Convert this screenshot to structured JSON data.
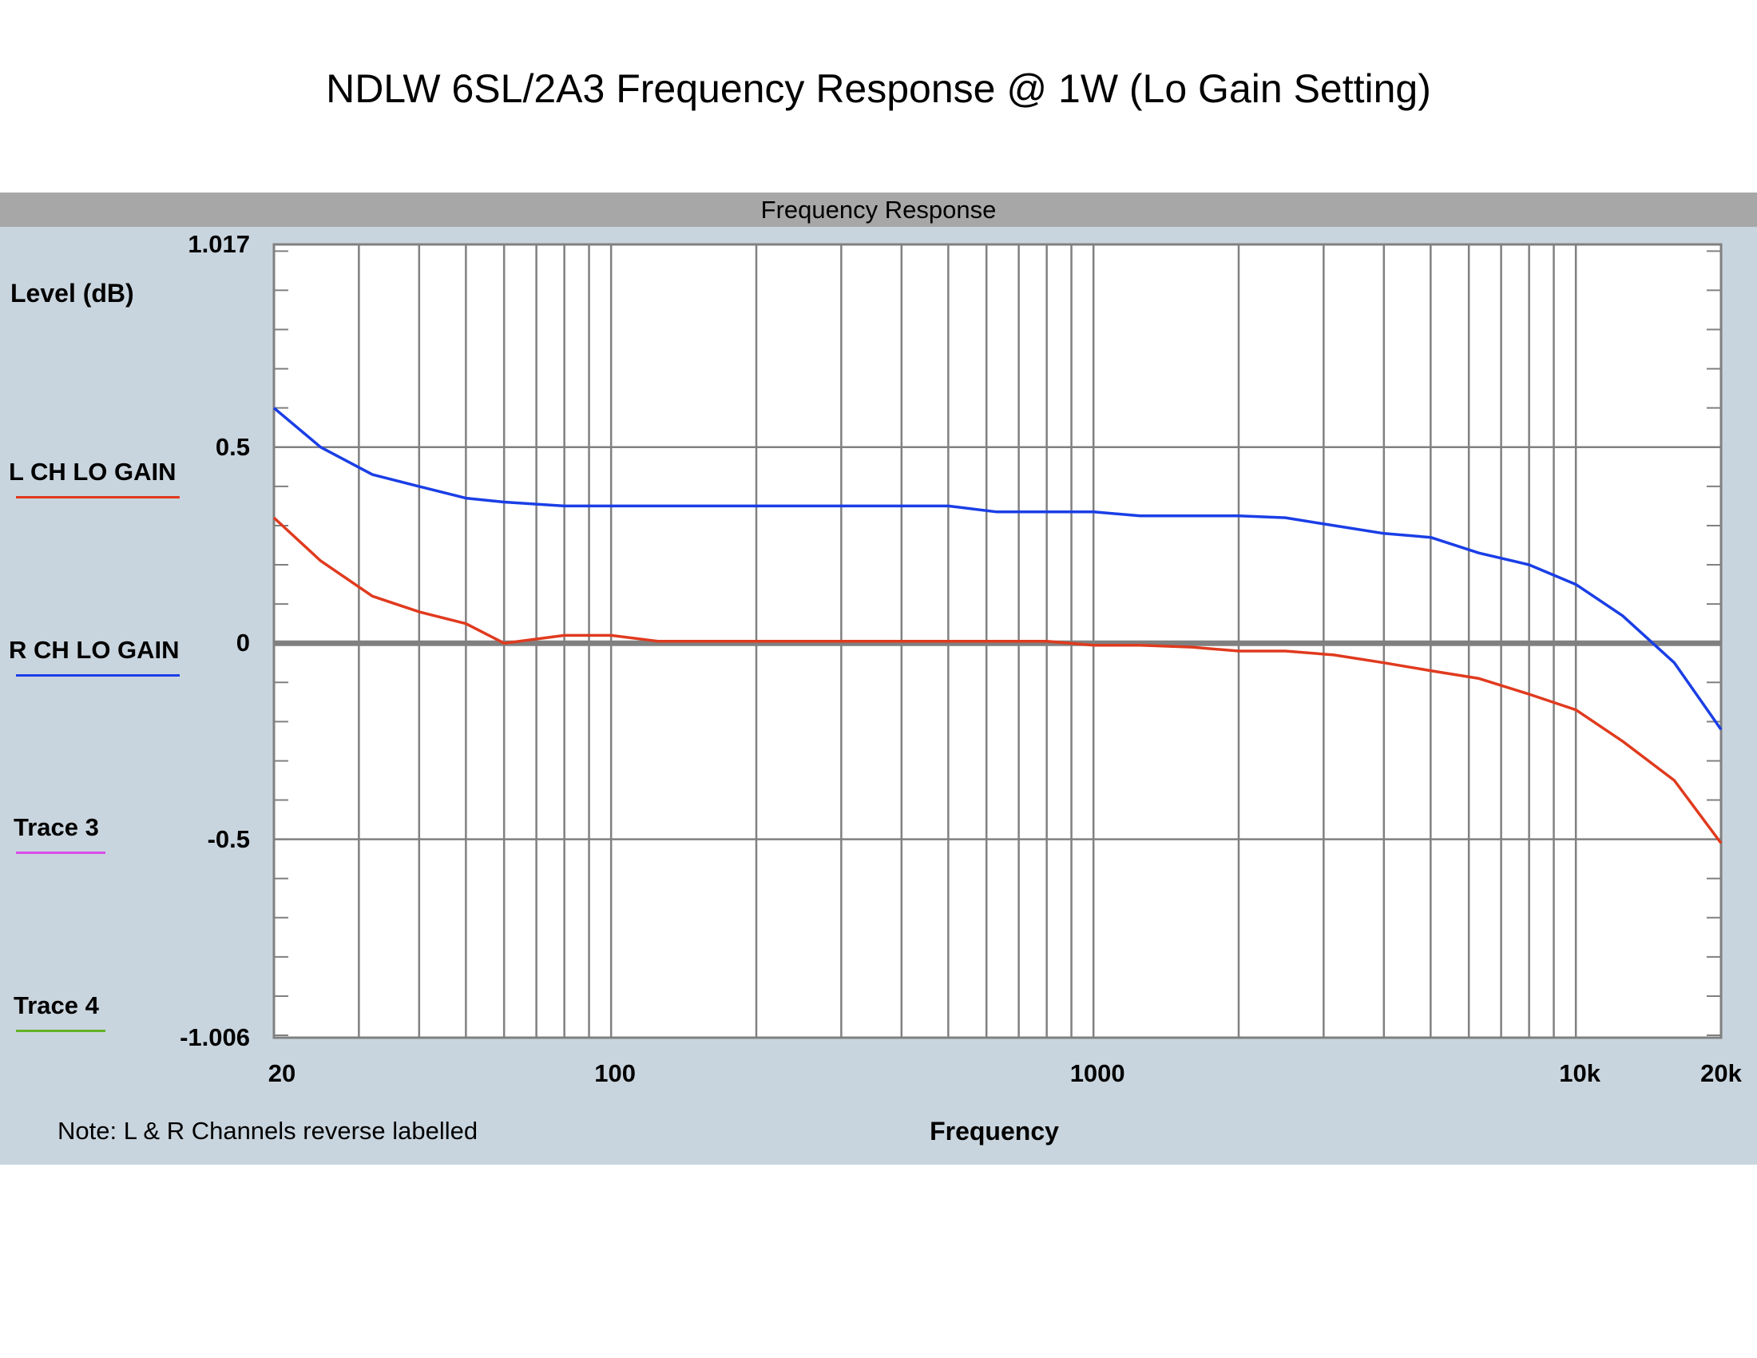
{
  "title": "NDLW 6SL/2A3 Frequency Response @ 1W (Lo Gain Setting)",
  "panel_header": "Frequency Response",
  "note": "Note: L & R Channels reverse labelled",
  "colors": {
    "panel_bg": "#c9d5de",
    "header_bg": "#a7a7a7",
    "grid": "#808080",
    "plot_bg": "#ffffff"
  },
  "chart_data": {
    "type": "line",
    "title": "Frequency Response",
    "xlabel": "Frequency",
    "ylabel": "Level (dB)",
    "xscale": "log",
    "xlim": [
      20,
      20000
    ],
    "ylim": [
      -1.006,
      1.017
    ],
    "grid": true,
    "legend_position": "left",
    "x_tick_labels": [
      {
        "value": 20,
        "label": "20"
      },
      {
        "value": 100,
        "label": "100"
      },
      {
        "value": 1000,
        "label": "1000"
      },
      {
        "value": 10000,
        "label": "10k"
      },
      {
        "value": 20000,
        "label": "20k"
      }
    ],
    "y_tick_labels": [
      {
        "value": 1.017,
        "label": "1.017"
      },
      {
        "value": 0.5,
        "label": "0.5"
      },
      {
        "value": 0,
        "label": "0"
      },
      {
        "value": -0.5,
        "label": "-0.5"
      },
      {
        "value": -1.006,
        "label": "-1.006"
      }
    ],
    "series": [
      {
        "name": "L CH LO GAIN",
        "color": "#e03a1e",
        "x": [
          20,
          25,
          32,
          40,
          50,
          60,
          80,
          100,
          125,
          160,
          200,
          250,
          315,
          400,
          500,
          630,
          800,
          1000,
          1250,
          1600,
          2000,
          2500,
          3150,
          4000,
          5000,
          6300,
          8000,
          10000,
          12500,
          16000,
          20000
        ],
        "y": [
          0.32,
          0.21,
          0.12,
          0.08,
          0.05,
          0.0,
          0.02,
          0.02,
          0.005,
          0.005,
          0.005,
          0.005,
          0.005,
          0.005,
          0.005,
          0.005,
          0.005,
          -0.005,
          -0.005,
          -0.01,
          -0.02,
          -0.02,
          -0.03,
          -0.05,
          -0.07,
          -0.09,
          -0.13,
          -0.17,
          -0.25,
          -0.35,
          -0.51
        ]
      },
      {
        "name": "R CH LO GAIN",
        "color": "#1a3ee6",
        "x": [
          20,
          25,
          32,
          40,
          50,
          60,
          80,
          100,
          125,
          160,
          200,
          250,
          315,
          400,
          500,
          630,
          800,
          1000,
          1250,
          1600,
          2000,
          2500,
          3150,
          4000,
          5000,
          6300,
          8000,
          10000,
          12500,
          16000,
          20000
        ],
        "y": [
          0.6,
          0.5,
          0.43,
          0.4,
          0.37,
          0.36,
          0.35,
          0.35,
          0.35,
          0.35,
          0.35,
          0.35,
          0.35,
          0.35,
          0.35,
          0.335,
          0.335,
          0.335,
          0.325,
          0.325,
          0.325,
          0.32,
          0.3,
          0.28,
          0.27,
          0.23,
          0.2,
          0.15,
          0.07,
          -0.05,
          -0.22
        ]
      },
      {
        "name": "Trace 3",
        "color": "#d84ce8",
        "x": [],
        "y": []
      },
      {
        "name": "Trace 4",
        "color": "#62b228",
        "x": [],
        "y": []
      }
    ]
  }
}
